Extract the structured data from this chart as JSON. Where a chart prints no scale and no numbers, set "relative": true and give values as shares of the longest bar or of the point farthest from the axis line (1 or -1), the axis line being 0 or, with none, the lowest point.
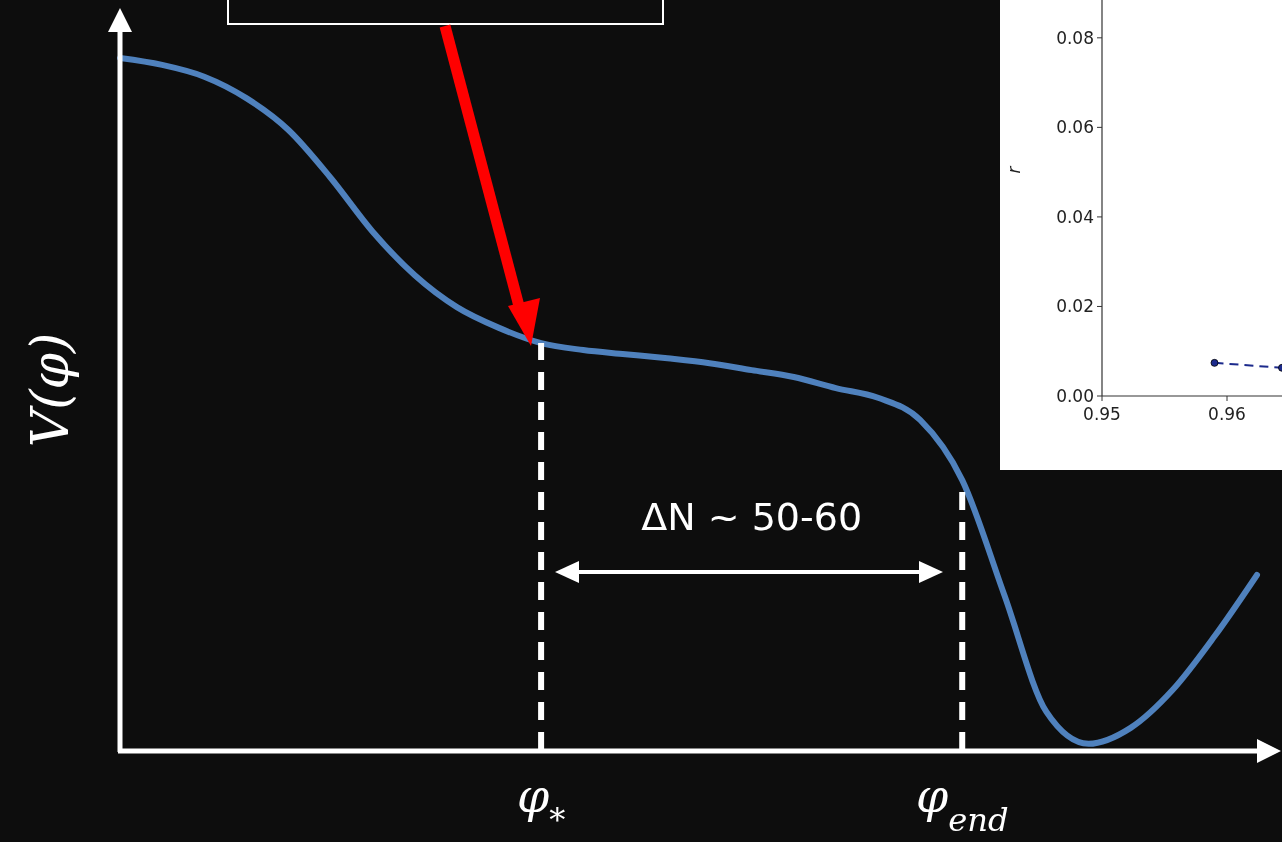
{
  "chart_data": [
    {
      "type": "line",
      "relative": true,
      "ylabel": "V(φ)",
      "categories": [
        null,
        null,
        null,
        null,
        null,
        null,
        null,
        null,
        null,
        null,
        "φ$_{*}$",
        null,
        null,
        null,
        null,
        null,
        null,
        null,
        null,
        null,
        "φ$_{end}$",
        null,
        null,
        null,
        null,
        null,
        null,
        null
      ],
      "series": [
        {
          "color": "#4f81bd",
          "values": [
            1.0,
            0.99,
            0.973,
            0.942,
            0.896,
            0.827,
            0.749,
            0.686,
            0.64,
            0.61,
            0.588,
            0.578,
            0.572,
            0.566,
            0.559,
            0.549,
            0.539,
            0.523,
            0.509,
            0.477,
            0.39,
            0.224,
            0.055,
            0.009,
            0.032,
            0.087,
            0.165,
            0.253
          ]
        }
      ],
      "ref_lines": [
        {
          "axis": "x",
          "value": "φ$_{*}$",
          "color": "#ffffff",
          "line_style": "dashed"
        },
        {
          "axis": "x",
          "value": "φ$_{end}$",
          "color": "#ffffff",
          "line_style": "dashed"
        }
      ],
      "annotations": [
        "ΔN ~ 50-60"
      ]
    },
    {
      "type": "line",
      "ylabel": "r",
      "xlim": [
        0.95,
        0.9644
      ],
      "ylim": [
        0,
        0.088
      ],
      "xticks": [
        {
          "value": 0.95,
          "label": "0.95"
        },
        {
          "value": 0.96,
          "label": "0.96"
        }
      ],
      "yticks": [
        {
          "value": 0,
          "label": "0.00"
        },
        {
          "value": 0.02,
          "label": "0.02"
        },
        {
          "value": 0.04,
          "label": "0.04"
        },
        {
          "value": 0.06,
          "label": "0.06"
        },
        {
          "value": 0.08,
          "label": "0.08"
        }
      ],
      "marker": "circle",
      "line_style": "dashed",
      "series": [
        {
          "color": "#1c2a8c",
          "x": [
            0.959,
            0.9644
          ],
          "values": [
            0.0074,
            0.0063
          ]
        }
      ]
    }
  ]
}
